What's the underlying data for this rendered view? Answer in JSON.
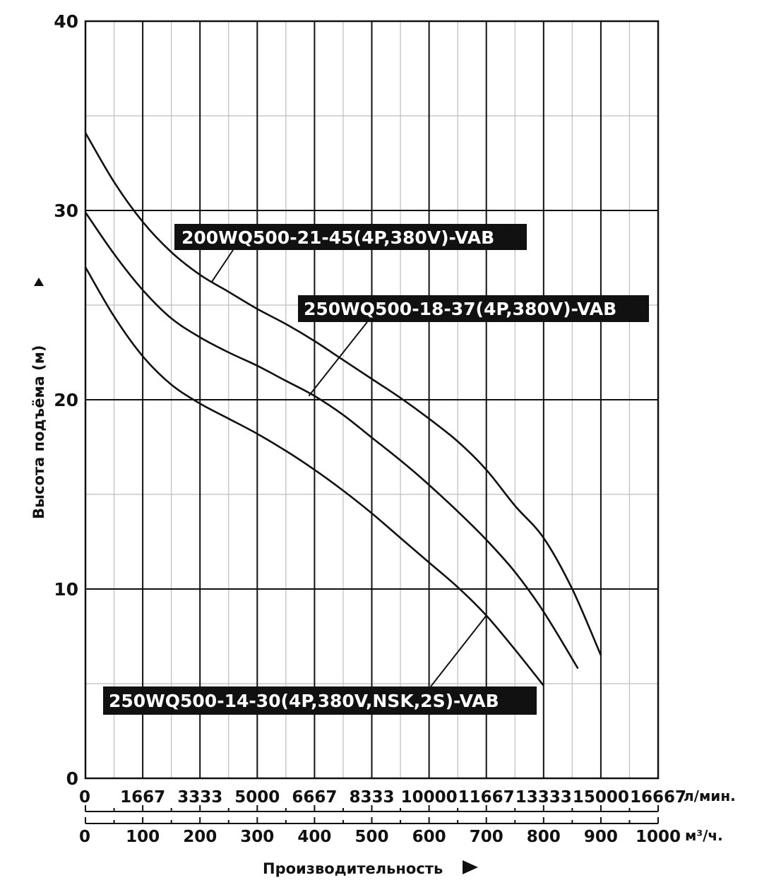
{
  "chart_data": {
    "type": "line",
    "ylabel": "Высота подъёма (м)",
    "xlabel": "Производительность",
    "ylim": [
      0,
      40
    ],
    "xlim": [
      0,
      1000
    ],
    "y_ticks": [
      "0",
      "10",
      "20",
      "30",
      "40"
    ],
    "y_tick_values": [
      0,
      10,
      20,
      30,
      40
    ],
    "x_ticks_m3h": [
      "0",
      "100",
      "200",
      "300",
      "400",
      "500",
      "600",
      "700",
      "800",
      "900",
      "1000"
    ],
    "x_ticks_lmin": [
      "0",
      "1667",
      "3333",
      "5000",
      "6667",
      "8333",
      "10000",
      "11667",
      "13333",
      "15000",
      "16667"
    ],
    "x_unit_lmin": "л/мин.",
    "x_unit_m3h": "м³/ч.",
    "grid": true,
    "series": [
      {
        "name": "200WQ500-21-45(4P,380V)-VAB",
        "x": [
          0,
          50,
          100,
          150,
          200,
          250,
          300,
          350,
          400,
          450,
          500,
          550,
          600,
          650,
          700,
          750,
          800,
          850,
          900
        ],
        "y": [
          34.1,
          31.5,
          29.4,
          27.8,
          26.6,
          25.7,
          24.8,
          24.0,
          23.1,
          22.1,
          21.1,
          20.1,
          19.0,
          17.8,
          16.3,
          14.4,
          12.7,
          10.0,
          6.5
        ]
      },
      {
        "name": "250WQ500-18-37(4P,380V)-VAB",
        "x": [
          0,
          50,
          100,
          150,
          200,
          250,
          300,
          350,
          400,
          450,
          500,
          550,
          600,
          650,
          700,
          750,
          800,
          860
        ],
        "y": [
          29.9,
          27.7,
          25.8,
          24.3,
          23.3,
          22.5,
          21.8,
          21.0,
          20.2,
          19.2,
          18.0,
          16.8,
          15.5,
          14.1,
          12.6,
          10.9,
          8.8,
          5.8
        ]
      },
      {
        "name": "250WQ500-14-30(4P,380V,NSK,2S)-VAB",
        "x": [
          0,
          50,
          100,
          150,
          200,
          250,
          300,
          350,
          400,
          450,
          500,
          550,
          600,
          650,
          700,
          750,
          800
        ],
        "y": [
          27.0,
          24.4,
          22.3,
          20.8,
          19.8,
          19.0,
          18.2,
          17.3,
          16.3,
          15.2,
          14.0,
          12.7,
          11.4,
          10.1,
          8.6,
          6.8,
          4.9
        ]
      }
    ],
    "annotations": [
      {
        "text": "200WQ500-21-45(4P,380V)-VAB",
        "series": 0,
        "point_at": [
          220,
          26.2
        ]
      },
      {
        "text": "250WQ500-18-37(4P,380V)-VAB",
        "series": 1,
        "point_at": [
          390,
          20.2
        ]
      },
      {
        "text": "250WQ500-14-30(4P,380V,NSK,2S)-VAB",
        "series": 2,
        "point_at": [
          700,
          8.6
        ]
      }
    ]
  }
}
